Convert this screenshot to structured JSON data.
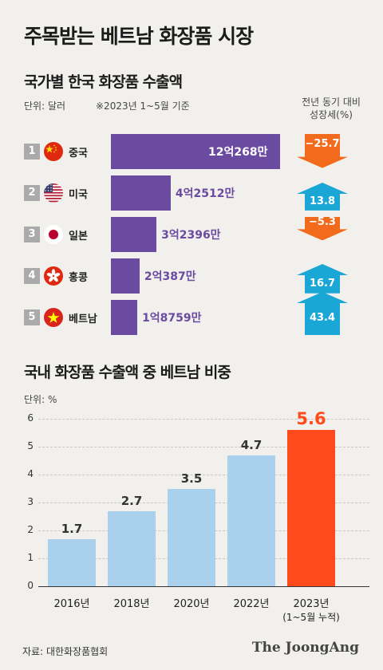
{
  "title": "주목받는 베트남 화장품 시장",
  "section1": {
    "title": "국가별 한국 화장품 수출액",
    "unit_note": "단위: 달러",
    "basis_note": "※2023년 1~5월 기준",
    "growth_header_line1": "전년 동기 대비",
    "growth_header_line2": "성장세(%)"
  },
  "section2": {
    "title": "국내 화장품 수출액 중 베트남 비중",
    "unit_note": "단위: %"
  },
  "source": "자료: 대한화장품협회",
  "logo": "The JoongAng",
  "colors": {
    "purple_bar": "#6b4aa1",
    "down_arrow": "#f26a1b",
    "up_arrow": "#1ba7d6",
    "blue_bar": "#a9d1ee",
    "highlight_bar": "#ff4a1c"
  },
  "chart_data": [
    {
      "type": "bar",
      "orientation": "horizontal",
      "title": "국가별 한국 화장품 수출액",
      "unit": "달러",
      "rows": [
        {
          "rank": "1",
          "country": "중국",
          "flag": "china-flag-icon",
          "value": 1202680000,
          "value_label": "12억268만",
          "growth": -25.7,
          "growth_label": "−25.7"
        },
        {
          "rank": "2",
          "country": "미국",
          "flag": "usa-flag-icon",
          "value": 425120000,
          "value_label": "4억2512만",
          "growth": 13.8,
          "growth_label": "13.8"
        },
        {
          "rank": "3",
          "country": "일본",
          "flag": "japan-flag-icon",
          "value": 323960000,
          "value_label": "3억2396만",
          "growth": -5.3,
          "growth_label": "−5.3"
        },
        {
          "rank": "4",
          "country": "홍콩",
          "flag": "hongkong-flag-icon",
          "value": 203870000,
          "value_label": "2억387만",
          "growth": 16.7,
          "growth_label": "16.7"
        },
        {
          "rank": "5",
          "country": "베트남",
          "flag": "vietnam-flag-icon",
          "value": 187590000,
          "value_label": "1억8759만",
          "growth": 43.4,
          "growth_label": "43.4"
        }
      ]
    },
    {
      "type": "bar",
      "title": "국내 화장품 수출액 중 베트남 비중",
      "ylabel": "%",
      "ylim": [
        0,
        6
      ],
      "yticks": [
        "0",
        "1",
        "2",
        "3",
        "4",
        "5",
        "6"
      ],
      "grid": true,
      "categories": [
        "2016년",
        "2018년",
        "2020년",
        "2022년",
        "2023년"
      ],
      "category_sublabels": [
        "",
        "",
        "",
        "",
        "(1~5월 누적)"
      ],
      "values": [
        1.7,
        2.7,
        3.5,
        4.7,
        5.6
      ],
      "value_labels": [
        "1.7",
        "2.7",
        "3.5",
        "4.7",
        "5.6"
      ],
      "highlight_index": 4
    }
  ]
}
